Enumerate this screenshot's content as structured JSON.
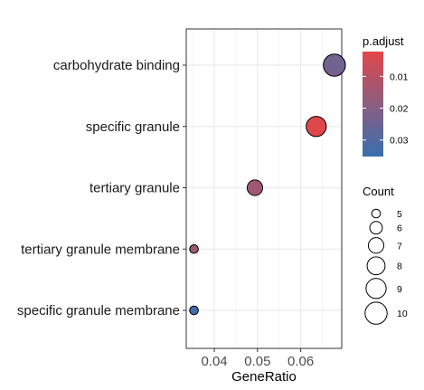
{
  "chart_data": {
    "type": "scatter",
    "xlabel": "GeneRatio",
    "ylabel": "",
    "xlim": [
      0.0335,
      0.0695
    ],
    "x_ticks": [
      0.04,
      0.05,
      0.06
    ],
    "x_tick_labels": [
      "0.04",
      "0.05",
      "0.06"
    ],
    "grid": true,
    "categories": [
      "carbohydrate binding",
      "specific granule",
      "tertiary granule",
      "tertiary granule membrane",
      "specific granule membrane"
    ],
    "points": [
      {
        "term": "carbohydrate binding",
        "gene_ratio": 0.0678,
        "count": 10,
        "p_adjust": 0.024
      },
      {
        "term": "specific granule",
        "gene_ratio": 0.0636,
        "count": 9,
        "p_adjust": 0.0025
      },
      {
        "term": "tertiary granule",
        "gene_ratio": 0.0494,
        "count": 7,
        "p_adjust": 0.015
      },
      {
        "term": "tertiary granule membrane",
        "gene_ratio": 0.0353,
        "count": 5,
        "p_adjust": 0.015
      },
      {
        "term": "specific granule membrane",
        "gene_ratio": 0.0353,
        "count": 5,
        "p_adjust": 0.034
      }
    ],
    "color_legend": {
      "title": "p.adjust",
      "range": [
        0.0022,
        0.0352
      ],
      "ticks": [
        0.01,
        0.02,
        0.03
      ],
      "tick_labels": [
        "0.01",
        "0.02",
        "0.03"
      ],
      "low_color": "#e2474a",
      "high_color": "#3a6eb0"
    },
    "size_legend": {
      "title": "Count",
      "values": [
        5,
        6,
        7,
        8,
        9,
        10
      ],
      "labels": [
        "5",
        "6",
        "7",
        "8",
        "9",
        "10"
      ]
    },
    "legend_position": "right"
  }
}
